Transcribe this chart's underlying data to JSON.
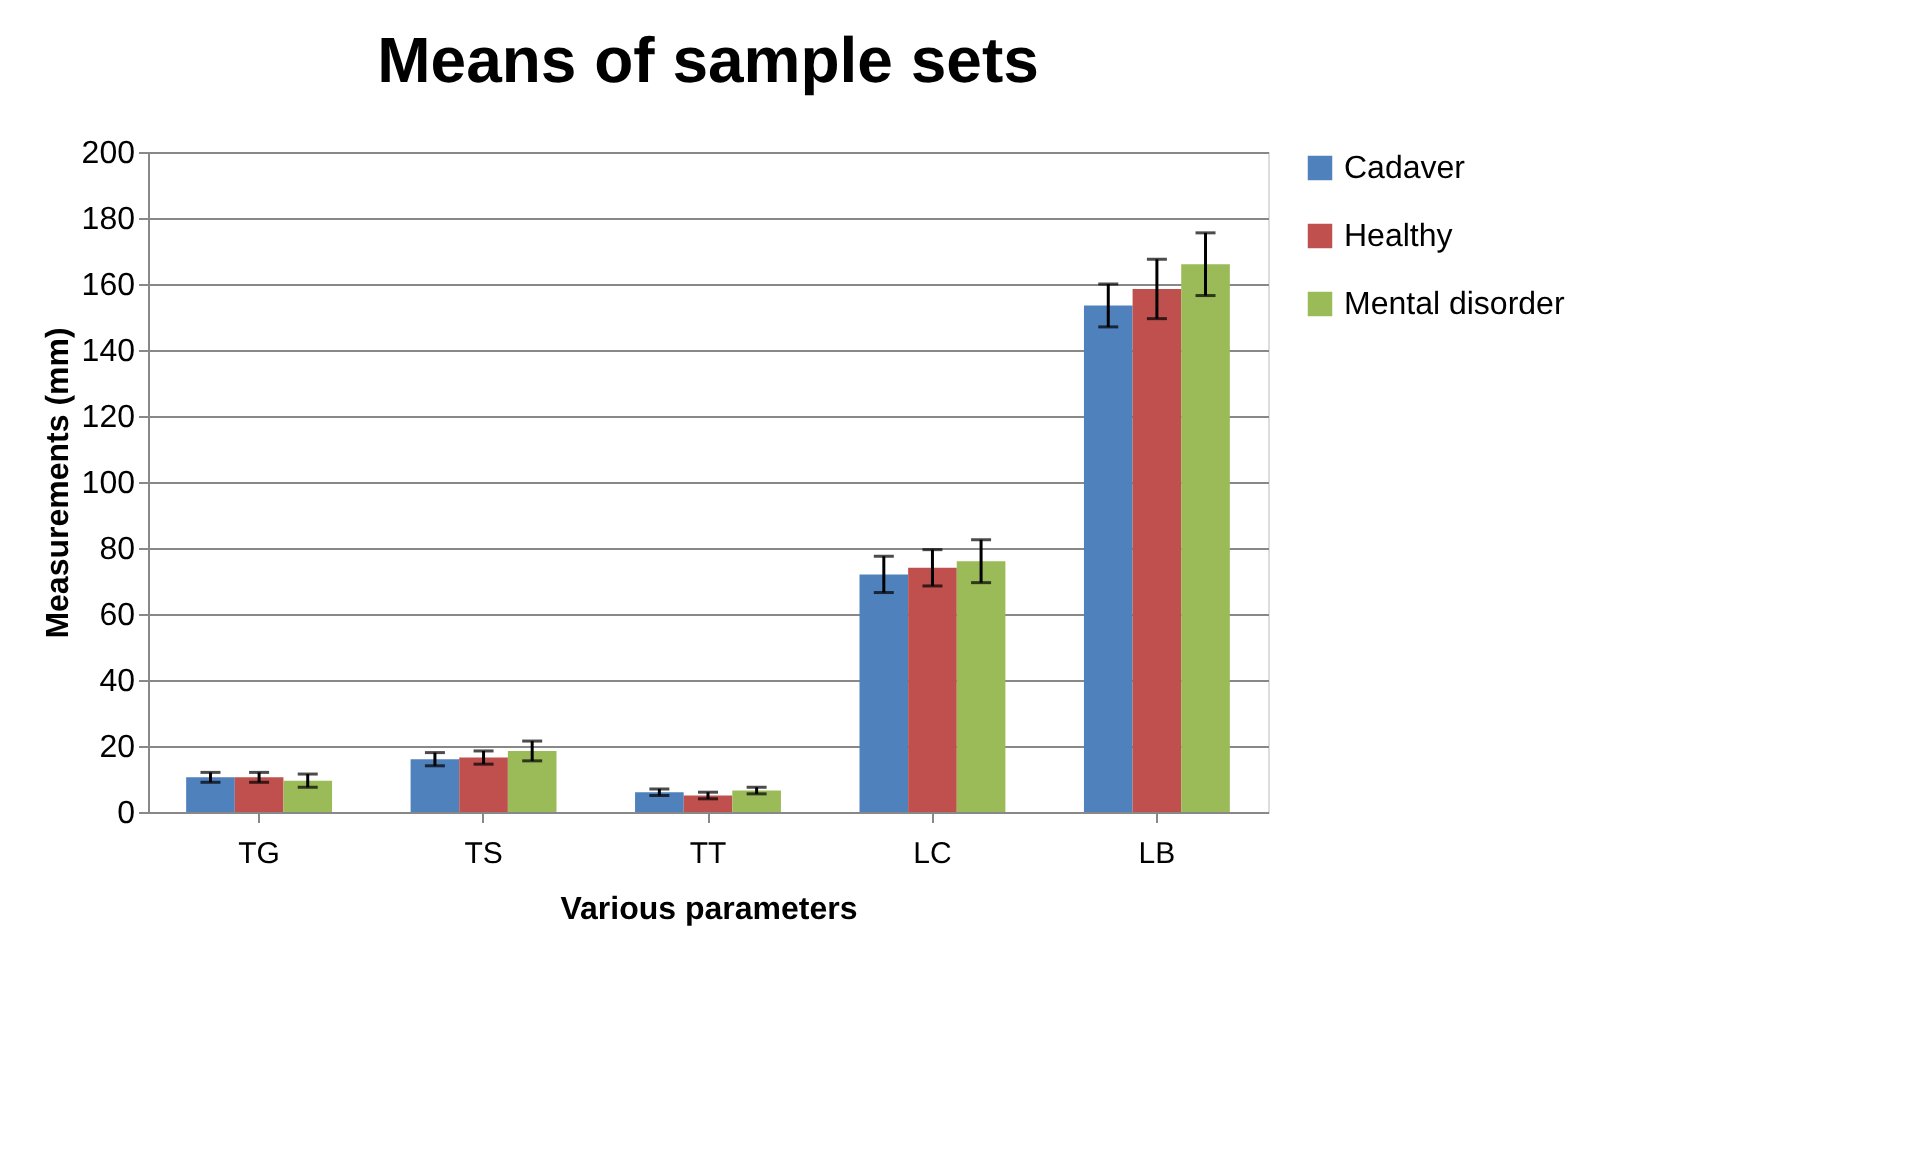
{
  "chart_data": {
    "type": "bar",
    "title": "Means of sample sets",
    "xlabel": "Various parameters",
    "ylabel": "Measurements (mm)",
    "categories": [
      "TG",
      "TS",
      "TT",
      "LC",
      "LB"
    ],
    "series": [
      {
        "name": "Cadaver",
        "color": "#4f81bd",
        "values": [
          10.5,
          16,
          6,
          72,
          153.5
        ],
        "errors": [
          1.5,
          2,
          1,
          5.5,
          6.5
        ]
      },
      {
        "name": "Healthy",
        "color": "#c0504d",
        "values": [
          10.5,
          16.5,
          5,
          74,
          158.5
        ],
        "errors": [
          1.5,
          2,
          1,
          5.5,
          9
        ]
      },
      {
        "name": "Mental disorder",
        "color": "#9bbb59",
        "values": [
          9.5,
          18.5,
          6.5,
          76,
          166
        ],
        "errors": [
          2,
          3,
          1,
          6.5,
          9.5
        ]
      }
    ],
    "ylim": [
      0,
      200
    ],
    "yticks": [
      0,
      20,
      40,
      60,
      80,
      100,
      120,
      140,
      160,
      180,
      200
    ],
    "grid": "y",
    "legend": "right"
  }
}
